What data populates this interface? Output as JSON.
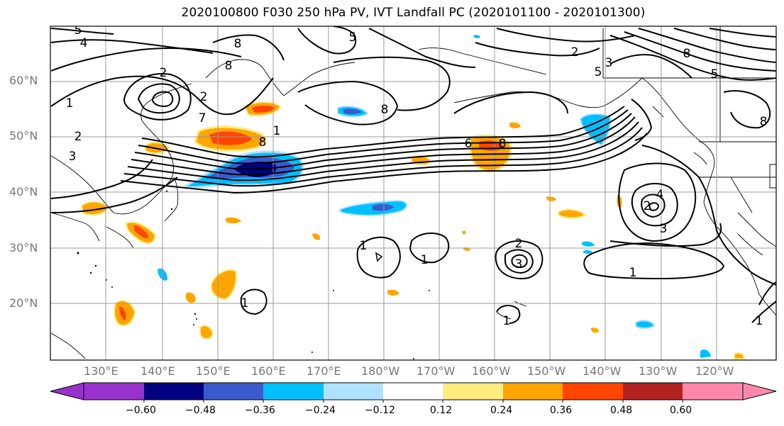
{
  "title": "2020100800 F030 250 hPa PV, IVT Landfall PC (2020101100 - 2020101300)",
  "lat_labels": [
    "60°N",
    "50°N",
    "40°N",
    "30°N",
    "20°N"
  ],
  "lon_labels": [
    "130°E",
    "140°E",
    "150°E",
    "160°E",
    "170°E",
    "180°W",
    "170°W",
    "160°W",
    "150°W",
    "140°W",
    "130°W",
    "120°W"
  ],
  "colorbar": {
    "colors": [
      "#9932cc",
      "#000080",
      "#3a5bcc",
      "#00bfff",
      "#b0e2ff",
      "#ffffff",
      "#ffeb80",
      "#ffa500",
      "#ff4500",
      "#b22222",
      "#ff88aa"
    ],
    "tick_labels": [
      "−0.60",
      "−0.48",
      "−0.36",
      "−0.24",
      "−0.12",
      "0.12",
      "0.24",
      "0.36",
      "0.48",
      "0.60"
    ]
  },
  "contour_labels": [
    "5",
    "4",
    "2",
    "1",
    "2",
    "3",
    "2",
    "7",
    "8",
    "8",
    "5",
    "8",
    "2",
    "5",
    "3",
    "8",
    "5",
    "8",
    "1",
    "8",
    "8",
    "6",
    "4",
    "2",
    "3",
    "1",
    "1",
    "1",
    "2",
    "3",
    "1",
    "1",
    "1"
  ]
}
